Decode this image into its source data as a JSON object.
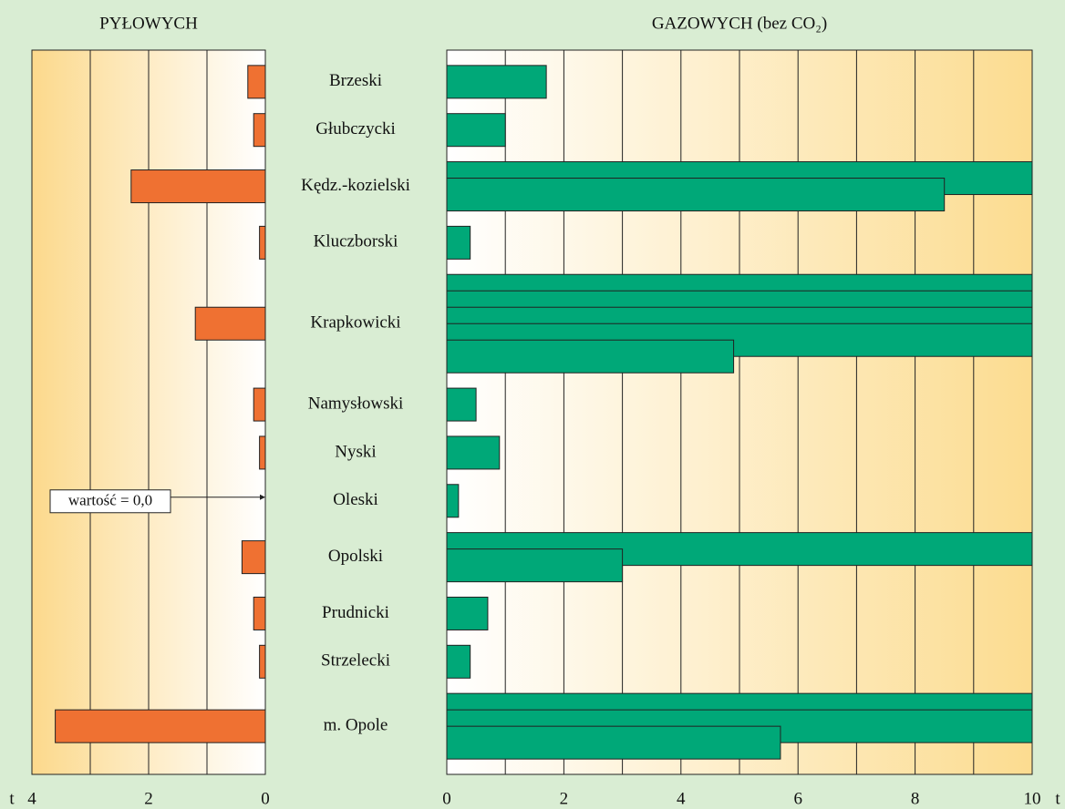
{
  "chart_data": {
    "type": "butterfly-bar",
    "categories": [
      "Brzeski",
      "Głubczycki",
      "Kędz.-kozielski",
      "Kluczborski",
      "Krapkowicki",
      "Namysłowski",
      "Nyski",
      "Oleski",
      "Opolski",
      "Prudnicki",
      "Strzelecki",
      "m. Opole"
    ],
    "annotation": {
      "text": "wartość = 0,0",
      "category": 7
    },
    "left": {
      "title": "PYŁOWYCH",
      "color": "#ef7132",
      "unit": "t",
      "values": [
        0.3,
        0.2,
        2.3,
        0.1,
        1.2,
        0.2,
        0.1,
        0.0,
        0.4,
        0.2,
        0.1,
        3.6
      ],
      "xlim": [
        0,
        4
      ],
      "xticks": [
        0,
        2,
        4
      ],
      "minor_xticks": [
        1,
        3
      ]
    },
    "right": {
      "title": "GAZOWYCH (bez CO₂)",
      "color": "#00a878",
      "unit": "t",
      "values": [
        1.7,
        1.0,
        18.5,
        0.4,
        44.9,
        0.5,
        0.9,
        0.2,
        13.0,
        0.7,
        0.4,
        25.7
      ],
      "xlim": [
        0,
        10
      ],
      "xticks": [
        0,
        2,
        4,
        6,
        8,
        10
      ],
      "minor_xticks": [
        1,
        3,
        5,
        7,
        9
      ]
    }
  }
}
